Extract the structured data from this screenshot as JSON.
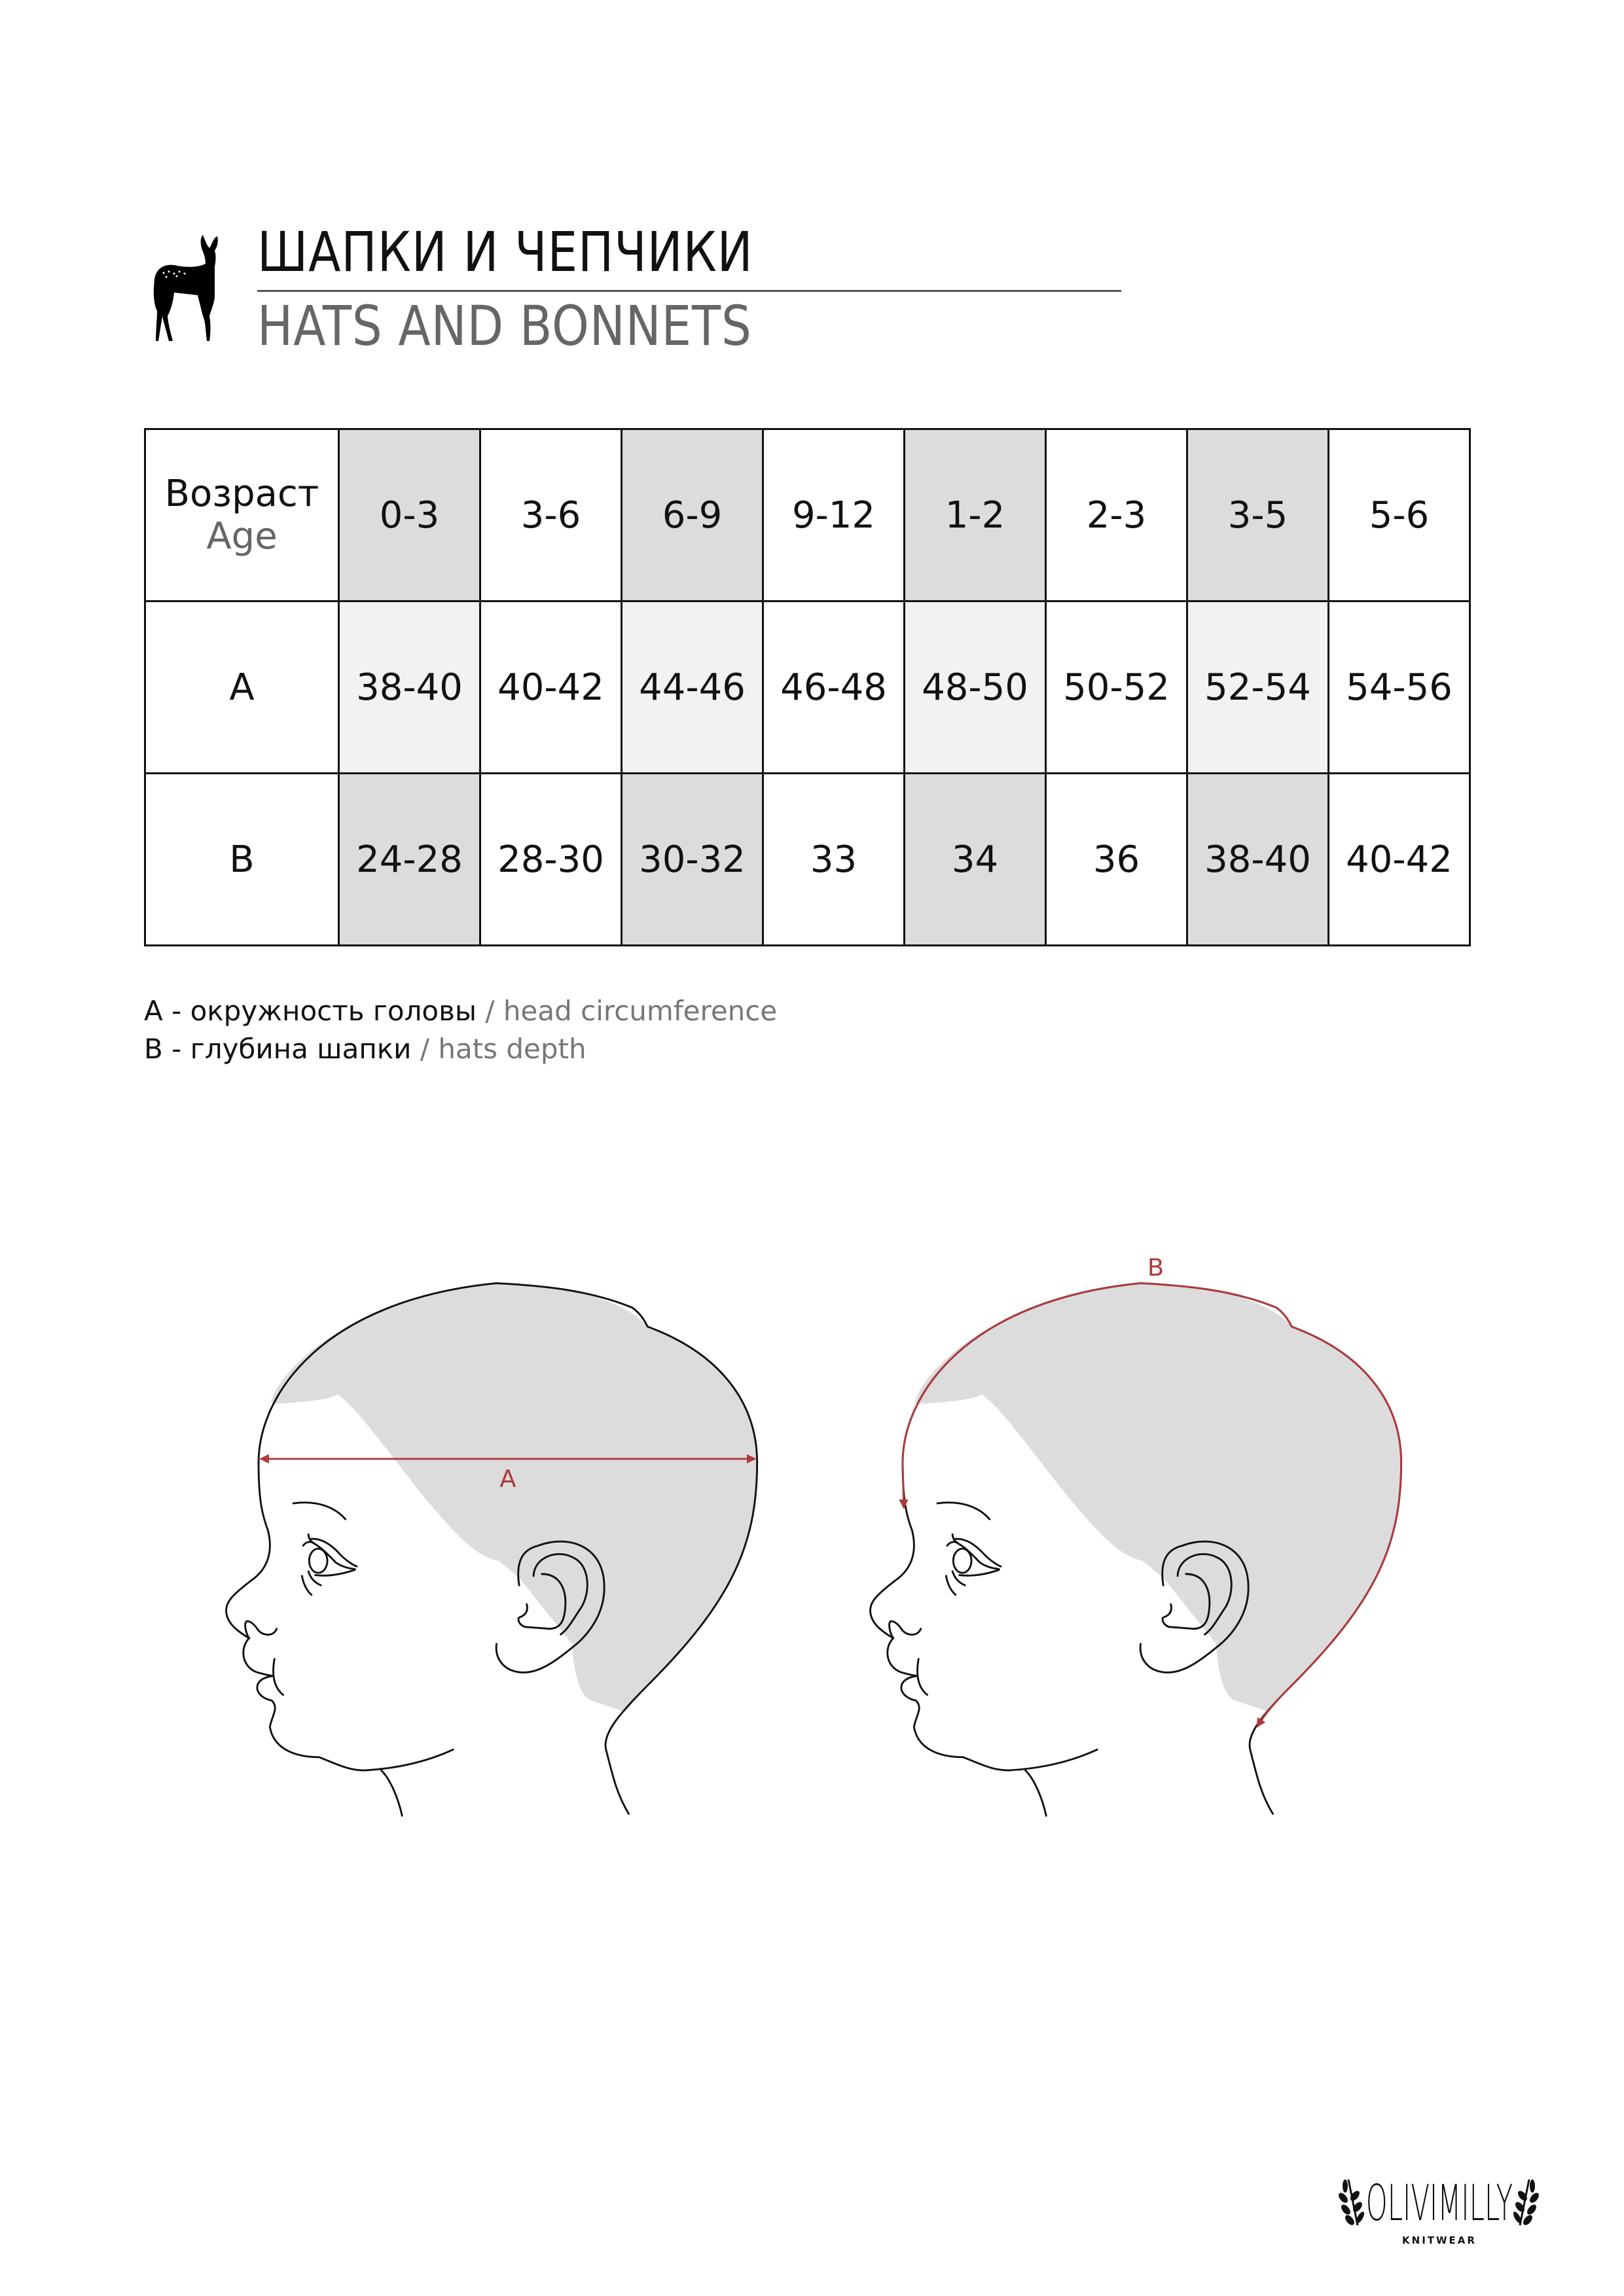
{
  "header": {
    "title_ru": "ШАПКИ И ЧЕПЧИКИ",
    "title_en": "HATS AND BONNETS",
    "icon": "deer-icon"
  },
  "table": {
    "row_header": {
      "label_ru": "Возраст",
      "label_en": "Age"
    },
    "ages": [
      "0-3",
      "3-6",
      "6-9",
      "9-12",
      "1-2",
      "2-3",
      "3-5",
      "5-6"
    ],
    "rows": [
      {
        "label": "A",
        "values": [
          "38-40",
          "40-42",
          "44-46",
          "46-48",
          "48-50",
          "50-52",
          "52-54",
          "54-56"
        ]
      },
      {
        "label": "B",
        "values": [
          "24-28",
          "28-30",
          "30-32",
          "33",
          "34",
          "36",
          "38-40",
          "40-42"
        ]
      }
    ],
    "shade_dark": "#dcdcdc",
    "shade_light": "#f2f2f2"
  },
  "legend": [
    {
      "ru": "A - окружность головы",
      "sep": " / ",
      "en": "head circumference"
    },
    {
      "ru": "B - глубина шапки",
      "sep": " / ",
      "en": "hats depth"
    }
  ],
  "diagrams": {
    "label_a": "A",
    "label_b": "B",
    "accent": "#b0393b",
    "cap_fill": "#dcdcdc"
  },
  "logo": {
    "name": "OLIVIMILLY",
    "tagline": "KNITWEAR"
  }
}
